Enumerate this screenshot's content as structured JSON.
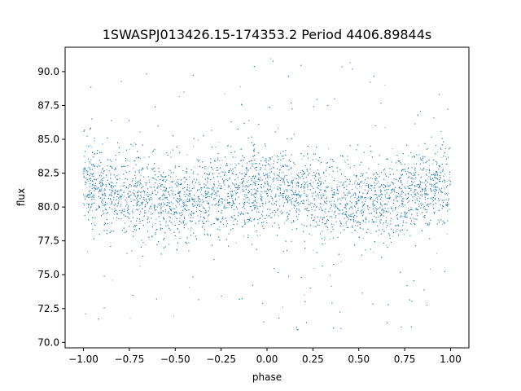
{
  "chart_data": {
    "type": "scatter",
    "title": "1SWASPJ013426.15-174353.2 Period 4406.89844s",
    "xlabel": "phase",
    "ylabel": "flux",
    "xlim": [
      -1.1,
      1.1
    ],
    "ylim": [
      69.6,
      91.8
    ],
    "xticks": [
      -1.0,
      -0.75,
      -0.5,
      -0.25,
      0.0,
      0.25,
      0.5,
      0.75,
      1.0
    ],
    "xtick_labels": [
      "−1.00",
      "−0.75",
      "−0.50",
      "−0.25",
      "0.00",
      "0.25",
      "0.50",
      "0.75",
      "1.00"
    ],
    "yticks": [
      70.0,
      72.5,
      75.0,
      77.5,
      80.0,
      82.5,
      85.0,
      87.5,
      90.0
    ],
    "ytick_labels": [
      "70.0",
      "72.5",
      "75.0",
      "77.5",
      "80.0",
      "82.5",
      "85.0",
      "87.5",
      "90.0"
    ],
    "grid": false,
    "legend": "none",
    "series": [
      {
        "color": "#1f77b4",
        "phase_range": [
          -1.0,
          1.0
        ],
        "flux_mean": 80.9,
        "flux_modulation_amplitude": 0.6,
        "flux_core_spread": 1.5,
        "flux_outlier_range": [
          70.7,
          91.0
        ]
      }
    ]
  }
}
